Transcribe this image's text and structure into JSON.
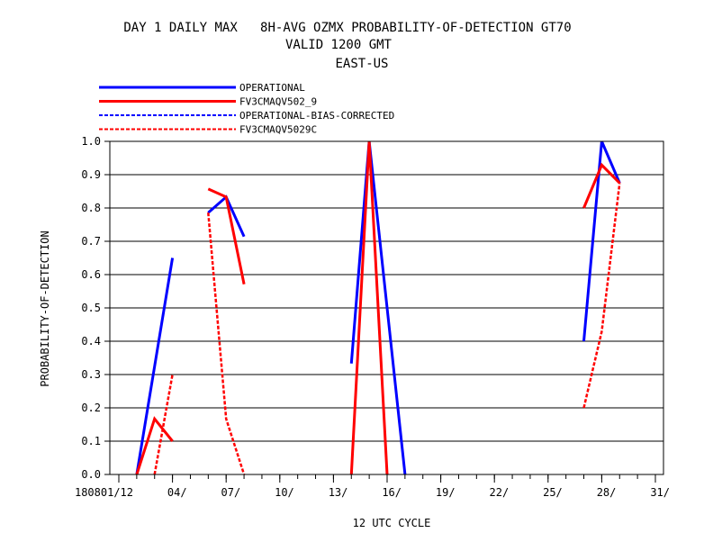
{
  "chart_data": {
    "type": "line",
    "title": "DAY 1 DAILY MAX   8H-AVG OZMX PROBABILITY-OF-DETECTION GT70",
    "subtitle": "VALID 1200 GMT",
    "region": "EAST-US",
    "xlabel": "12 UTC CYCLE",
    "ylabel": "PROBABILITY-OF-DETECTION",
    "x_ticks": [
      1,
      4,
      7,
      10,
      13,
      16,
      19,
      22,
      25,
      28,
      31
    ],
    "x_tick_labels": [
      "180801/12",
      "04/",
      "07/",
      "10/",
      "13/",
      "16/",
      "19/",
      "22/",
      "25/",
      "28/",
      "31/"
    ],
    "xlim": [
      1,
      31
    ],
    "ylim": [
      0,
      1
    ],
    "y_ticks": [
      0,
      0.1,
      0.2,
      0.3,
      0.4,
      0.5,
      0.6,
      0.7,
      0.8,
      0.9,
      1.0
    ],
    "y_tick_labels": [
      "0.0",
      "0.1",
      "0.2",
      "0.3",
      "0.4",
      "0.5",
      "0.6",
      "0.7",
      "0.8",
      "0.9",
      "1.0"
    ],
    "grid": "horizontal",
    "legend_position": "top-left",
    "series": [
      {
        "name": "OPERATIONAL",
        "color": "#0000ff",
        "dash": "solid",
        "segments": [
          [
            [
              2,
              0.0
            ],
            [
              4,
              0.65
            ]
          ],
          [
            [
              6,
              0.786
            ],
            [
              7,
              0.833
            ],
            [
              8,
              0.714
            ]
          ],
          [
            [
              14,
              0.333
            ],
            [
              15,
              1.0
            ],
            [
              16,
              0.5
            ],
            [
              17,
              0.0
            ]
          ],
          [
            [
              27,
              0.4
            ],
            [
              28,
              1.0
            ],
            [
              29,
              0.875
            ]
          ]
        ]
      },
      {
        "name": "FV3CMAQV502_9",
        "color": "#ff0000",
        "dash": "solid",
        "segments": [
          [
            [
              2,
              0.0
            ],
            [
              3,
              0.167
            ],
            [
              4,
              0.1
            ]
          ],
          [
            [
              6,
              0.857
            ],
            [
              7,
              0.833
            ],
            [
              8,
              0.571
            ]
          ],
          [
            [
              14,
              0.0
            ],
            [
              15,
              1.0
            ],
            [
              16,
              0.0
            ]
          ],
          [
            [
              27,
              0.8
            ],
            [
              28,
              0.929
            ],
            [
              29,
              0.875
            ]
          ]
        ]
      },
      {
        "name": "OPERATIONAL-BIAS-CORRECTED",
        "color": "#0000ff",
        "dash": "dashed",
        "segments": []
      },
      {
        "name": "FV3CMAQV5029C",
        "color": "#ff0000",
        "dash": "dashed",
        "segments": [
          [
            [
              3,
              0.0
            ],
            [
              4,
              0.3
            ]
          ],
          [
            [
              6,
              0.786
            ],
            [
              7,
              0.167
            ],
            [
              8,
              0.0
            ]
          ],
          [
            [
              15,
              1.0
            ]
          ],
          [
            [
              27,
              0.2
            ],
            [
              28,
              0.429
            ],
            [
              29,
              0.875
            ]
          ]
        ]
      }
    ]
  }
}
